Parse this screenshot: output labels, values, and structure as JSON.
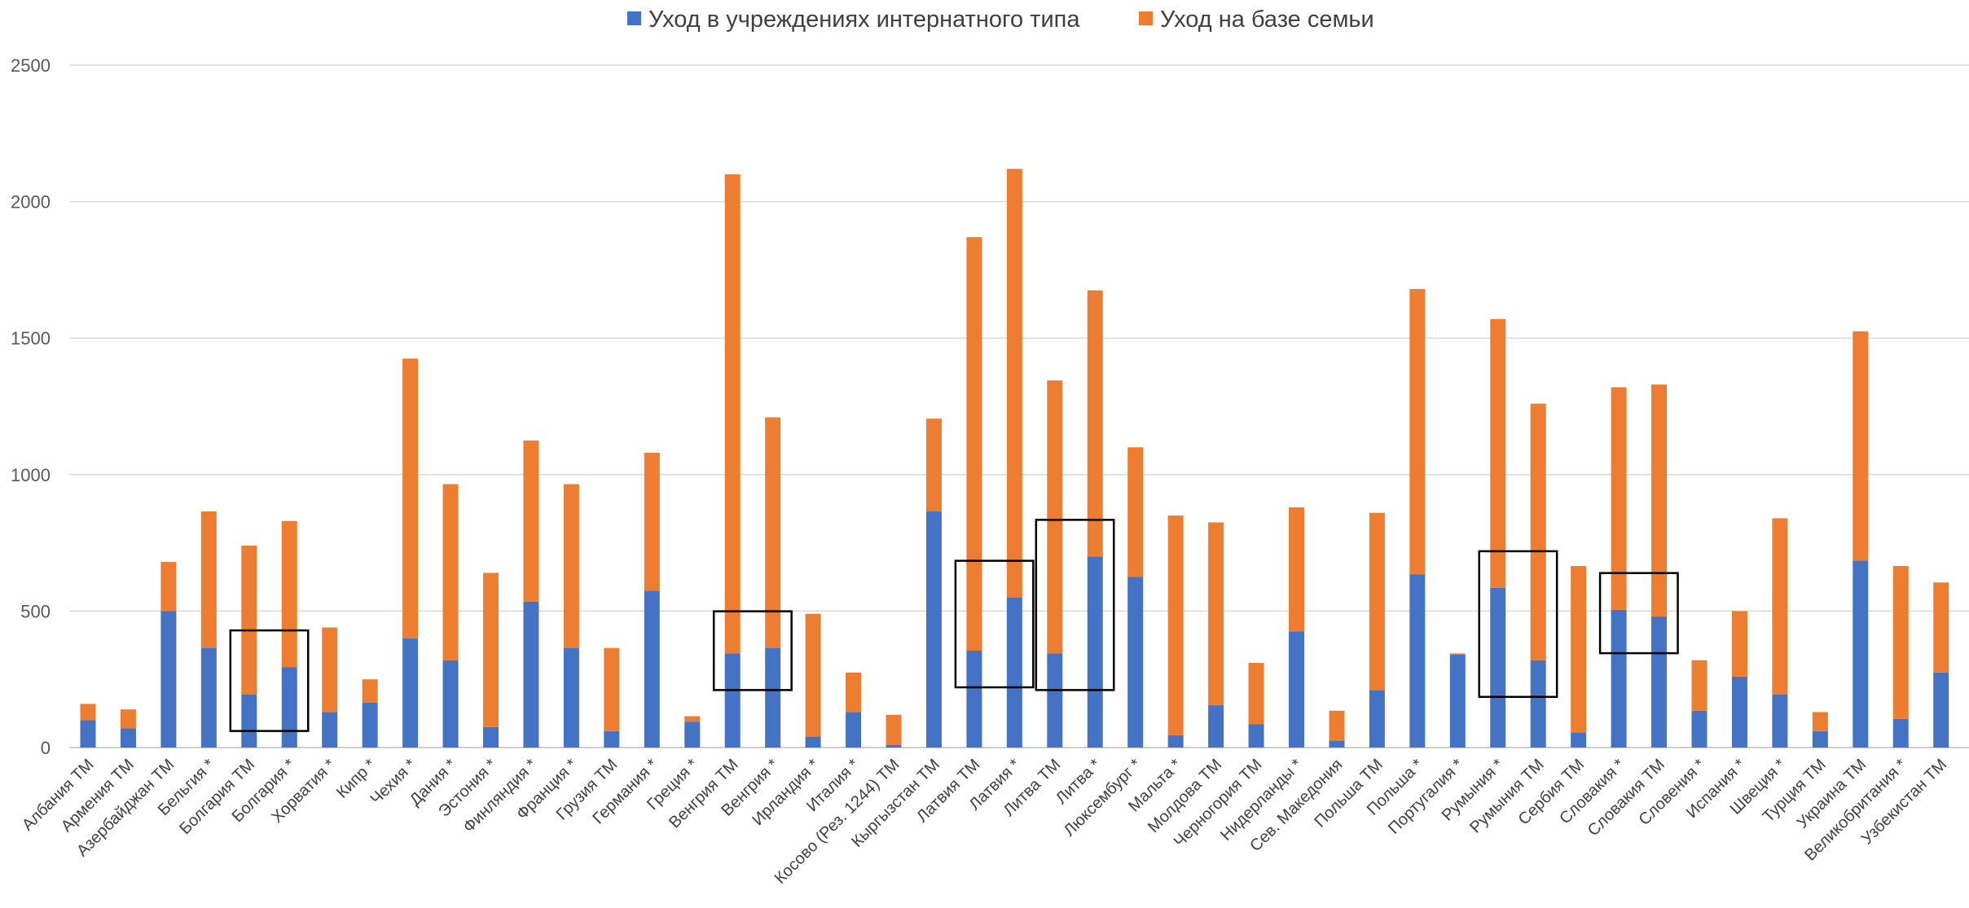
{
  "chart_data": {
    "type": "bar",
    "stacked": true,
    "legend_position": "top",
    "grid": true,
    "ylim": [
      0,
      2500
    ],
    "yticks": [
      0,
      500,
      1000,
      1500,
      2000,
      2500
    ],
    "categories": [
      "Албания ТМ",
      "Армения ТМ",
      "Азербайджан ТМ",
      "Бельгия *",
      "Болгария ТМ",
      "Болгария *",
      "Хорватия *",
      "Кипр *",
      "Чехия *",
      "Дания *",
      "Эстония *",
      "Финляндия *",
      "Франция *",
      "Грузия ТМ",
      "Германия *",
      "Греция *",
      "Венгрия ТМ",
      "Венгрия *",
      "Ирландия *",
      "Италия *",
      "Косово (Рез. 1244) ТМ",
      "Кыргызстан ТМ",
      "Латвия ТМ",
      "Латвия *",
      "Литва ТМ",
      "Литва *",
      "Люксембург *",
      "Мальта *",
      "Молдова ТМ",
      "Черногория ТМ",
      "Нидерланды *",
      "Сев. Македония",
      "Польша ТМ",
      "Польша *",
      "Португалия *",
      "Румыния *",
      "Румыния ТМ",
      "Сербия ТМ",
      "Словакия *",
      "Словакия ТМ",
      "Словения *",
      "Испания *",
      "Швеция *",
      "Турция ТМ",
      "Украина ТМ",
      "Великобритания *",
      "Узбекистан ТМ"
    ],
    "series": [
      {
        "name": "Уход в учреждениях интернатного типа",
        "color": "#4472C4",
        "values": [
          100,
          70,
          500,
          365,
          195,
          295,
          130,
          165,
          400,
          320,
          75,
          535,
          365,
          60,
          575,
          95,
          345,
          365,
          40,
          130,
          10,
          865,
          355,
          550,
          345,
          700,
          625,
          45,
          155,
          85,
          425,
          25,
          210,
          635,
          340,
          585,
          320,
          55,
          505,
          480,
          135,
          260,
          195,
          60,
          685,
          105,
          275
        ]
      },
      {
        "name": "Уход на базе семьи",
        "color": "#ED7D31",
        "values": [
          60,
          70,
          180,
          500,
          545,
          535,
          310,
          85,
          1025,
          645,
          565,
          590,
          600,
          305,
          505,
          20,
          1755,
          845,
          450,
          145,
          110,
          340,
          1515,
          1570,
          1000,
          975,
          475,
          805,
          670,
          225,
          455,
          110,
          650,
          1045,
          5,
          985,
          940,
          610,
          815,
          850,
          185,
          240,
          645,
          70,
          840,
          560,
          330
        ]
      }
    ],
    "highlighted_groups": [
      [
        "Болгария ТМ",
        "Болгария *"
      ],
      [
        "Венгрия ТМ",
        "Венгрия *"
      ],
      [
        "Латвия ТМ",
        "Латвия *"
      ],
      [
        "Литва ТМ",
        "Литва *"
      ],
      [
        "Румыния *",
        "Румыния ТМ"
      ],
      [
        "Словакия *",
        "Словакия ТМ"
      ]
    ]
  }
}
